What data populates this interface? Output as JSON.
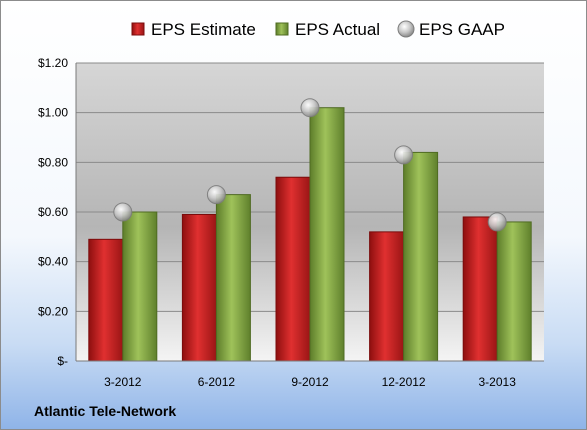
{
  "company_label": "Atlantic Tele-Network",
  "chart_data": {
    "type": "bar",
    "title": "",
    "xlabel": "",
    "ylabel": "",
    "categories": [
      "3-2012",
      "6-2012",
      "9-2012",
      "12-2012",
      "3-2013"
    ],
    "series": [
      {
        "name": "EPS Estimate",
        "kind": "bar",
        "color": "#cc1f1f",
        "values": [
          0.49,
          0.59,
          0.74,
          0.52,
          0.58
        ]
      },
      {
        "name": "EPS Actual",
        "kind": "bar",
        "color": "#8db04a",
        "values": [
          0.6,
          0.67,
          1.02,
          0.84,
          0.56
        ]
      },
      {
        "name": "EPS GAAP",
        "kind": "marker",
        "color": "#b8b8b8",
        "values": [
          0.6,
          0.67,
          1.02,
          0.83,
          0.56
        ]
      }
    ],
    "ylim": [
      0,
      1.2
    ],
    "yticks": [
      0,
      0.2,
      0.4,
      0.6,
      0.8,
      1.0,
      1.2
    ],
    "ytick_labels": [
      "$-",
      "$0.20",
      "$0.40",
      "$0.60",
      "$0.80",
      "$1.00",
      "$1.20"
    ],
    "grid": true,
    "legend_position": "top"
  }
}
